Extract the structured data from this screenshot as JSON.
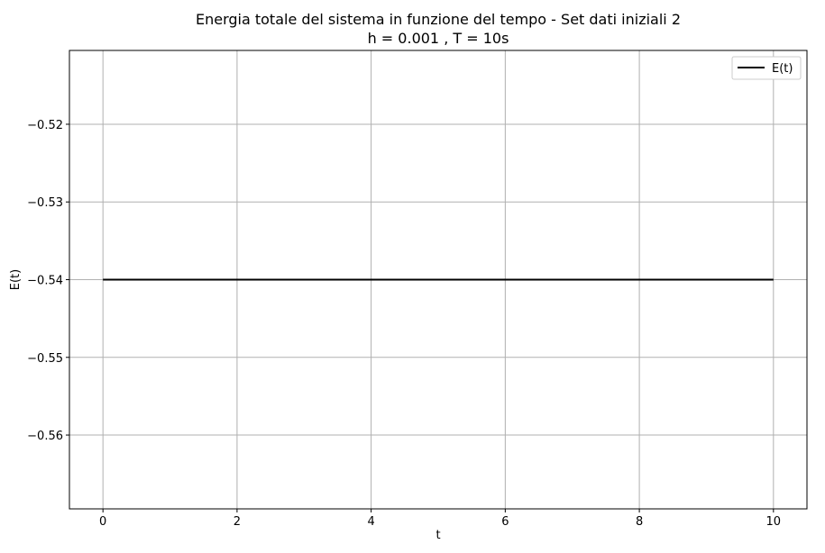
{
  "chart_data": {
    "type": "line",
    "title": "Energia totale del sistema in funzione del tempo - Set dati iniziali 2",
    "subtitle": "h = 0.001 , T = 10s",
    "xlabel": "t",
    "ylabel": "E(t)",
    "xlim": [
      -0.5,
      10.5
    ],
    "ylim": [
      -0.5695,
      -0.5105
    ],
    "xticks": [
      0,
      2,
      4,
      6,
      8,
      10
    ],
    "xtick_labels": [
      "0",
      "2",
      "4",
      "6",
      "8",
      "10"
    ],
    "yticks": [
      -0.52,
      -0.53,
      -0.54,
      -0.55,
      -0.56
    ],
    "ytick_labels": [
      "−0.52",
      "−0.53",
      "−0.54",
      "−0.55",
      "−0.56"
    ],
    "grid": true,
    "legend_position": "top-right",
    "series": [
      {
        "name": "E(t)",
        "color": "#000000",
        "x": [
          0,
          10
        ],
        "y": [
          -0.54,
          -0.54
        ]
      }
    ]
  }
}
